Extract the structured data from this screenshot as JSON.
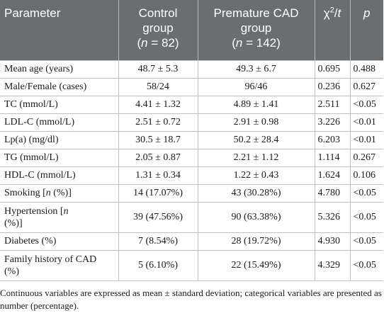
{
  "header": {
    "parameter": "Parameter",
    "control_line1": "Control",
    "control_line2": "group",
    "control_n_var": "n",
    "control_n_val": " = 82)",
    "premature_line1": "Premature CAD",
    "premature_line2": "group",
    "premature_n_var": "n",
    "premature_n_val": " = 142)",
    "stat_chi": "χ",
    "stat_sup": "2",
    "stat_t": "t",
    "p": "p"
  },
  "rows": [
    {
      "parameter": "Mean age (years)",
      "control": "48.7 ± 5.3",
      "premature": "49.3 ± 6.7",
      "stat": "0.695",
      "p": "0.488"
    },
    {
      "parameter": "Male/Female (cases)",
      "control": "58/24",
      "premature": "96/46",
      "stat": "0.236",
      "p": "0.627"
    },
    {
      "parameter": "TC (mmol/L)",
      "control": "4.41 ± 1.32",
      "premature": "4.89 ± 1.41",
      "stat": "2.511",
      "p": "<0.05"
    },
    {
      "parameter": "LDL-C (mmol/L)",
      "control": "2.51 ± 0.72",
      "premature": "2.91 ± 0.98",
      "stat": "3.226",
      "p": "<0.01"
    },
    {
      "parameter": "Lp(a) (mg/dl)",
      "control": "30.5 ± 18.7",
      "premature": "50.2 ± 28.4",
      "stat": "6.203",
      "p": "<0.01"
    },
    {
      "parameter": "TG (mmol/L)",
      "control": "2.05 ± 0.87",
      "premature": "2.21 ± 1.12",
      "stat": "1.114",
      "p": "0.267"
    },
    {
      "parameter": "HDL-C (mmol/L)",
      "control": "1.31 ± 0.34",
      "premature": "1.22 ± 0.43",
      "stat": "1.624",
      "p": "0.106"
    },
    {
      "parameter_pre": "Smoking [",
      "parameter_var": "n",
      "parameter_post": " (%)]",
      "control": "14 (17.07%)",
      "premature": "43 (30.28%)",
      "stat": "4.780",
      "p": "<0.05"
    },
    {
      "parameter_pre": "Hypertension [",
      "parameter_var": "n",
      "parameter_post": " (%)]",
      "control": "39 (47.56%)",
      "premature": "90 (63.38%)",
      "stat": "5.326",
      "p": "<0.05"
    },
    {
      "parameter": "Diabetes (%)",
      "control": "7 (8.54%)",
      "premature": "28 (19.72%)",
      "stat": "4.930",
      "p": "<0.05"
    },
    {
      "parameter": "Family history of CAD (%)",
      "control": "5 (6.10%)",
      "premature": "22 (15.49%)",
      "stat": "4.329",
      "p": "<0.05"
    }
  ],
  "footnote": "Continuous variables are expressed as mean ± standard deviation; categorical variables are presented as number (percentage)."
}
